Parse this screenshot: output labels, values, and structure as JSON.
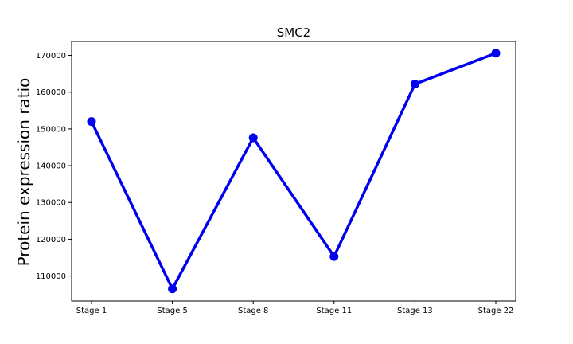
{
  "chart_data": {
    "type": "line",
    "title": "SMC2",
    "xlabel": "",
    "ylabel": "Protein expression ratio",
    "categories": [
      "Stage 1",
      "Stage 5",
      "Stage 8",
      "Stage 11",
      "Stage 13",
      "Stage 22"
    ],
    "series": [
      {
        "values": [
          152000,
          106500,
          147600,
          115300,
          162200,
          170600
        ],
        "color": "#0000ee"
      }
    ],
    "ylim": [
      103200,
      173800
    ],
    "yticks": [
      110000,
      120000,
      130000,
      140000,
      150000,
      160000,
      170000
    ],
    "ytick_labels": [
      "110000",
      "120000",
      "130000",
      "140000",
      "150000",
      "160000",
      "170000"
    ],
    "grid": false,
    "legend": "none"
  }
}
